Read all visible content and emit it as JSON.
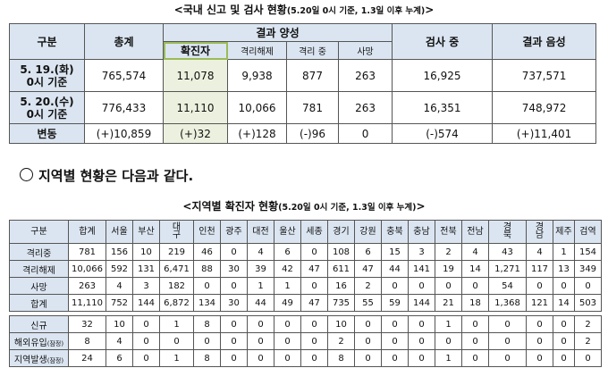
{
  "caption1": {
    "main": "<국내 신고 및 검사 현황",
    "sub": "(5.20일 0시 기준, 1.3일 이후 누계)",
    "end": ">"
  },
  "table1": {
    "h_gubun": "구분",
    "h_total": "총계",
    "h_pos": "결과 양성",
    "h_confirmed": "확진자",
    "h_released": "격리해제",
    "h_isolating": "격리 중",
    "h_death": "사망",
    "h_testing": "검사 중",
    "h_negative": "결과 음성",
    "rows": [
      {
        "label1": "5. 19.(화)",
        "label2": "0시 기준",
        "cells": [
          "765,574",
          "11,078",
          "9,938",
          "877",
          "263",
          "16,925",
          "737,571"
        ]
      },
      {
        "label1": "5. 20.(수)",
        "label2": "0시 기준",
        "cells": [
          "776,433",
          "11,110",
          "10,066",
          "781",
          "263",
          "16,351",
          "748,972"
        ]
      }
    ],
    "change": {
      "label": "변동",
      "cells": [
        "(+)10,859",
        "(+)32",
        "(+)128",
        "(-)96",
        "0",
        "(-)574",
        "(+)11,401"
      ]
    }
  },
  "heading": "지역별 현황은 다음과 같다.",
  "caption2": {
    "main": "<지역별 확진자 현황",
    "sub": "(5.20일 0시 기준, 1.3일 이후 누계)",
    "end": ">"
  },
  "table2": {
    "headers": [
      "구분",
      "합계",
      "서울",
      "부산",
      "대구",
      "인천",
      "광주",
      "대전",
      "울산",
      "세종",
      "경기",
      "강원",
      "충북",
      "충남",
      "전북",
      "전남",
      "경북",
      "경남",
      "제주",
      "검역"
    ],
    "rows": [
      {
        "label": "격리중",
        "note": "",
        "cells": [
          "781",
          "156",
          "10",
          "219",
          "46",
          "0",
          "4",
          "6",
          "0",
          "108",
          "6",
          "15",
          "3",
          "2",
          "4",
          "43",
          "4",
          "1",
          "154"
        ]
      },
      {
        "label": "격리해제",
        "note": "",
        "cells": [
          "10,066",
          "592",
          "131",
          "6,471",
          "88",
          "30",
          "39",
          "42",
          "47",
          "611",
          "47",
          "44",
          "141",
          "19",
          "14",
          "1,271",
          "117",
          "13",
          "349"
        ]
      },
      {
        "label": "사망",
        "note": "",
        "cells": [
          "263",
          "4",
          "3",
          "182",
          "0",
          "0",
          "1",
          "1",
          "0",
          "16",
          "2",
          "0",
          "0",
          "0",
          "0",
          "54",
          "0",
          "0",
          "0"
        ]
      },
      {
        "label": "합계",
        "note": "",
        "cells": [
          "11,110",
          "752",
          "144",
          "6,872",
          "134",
          "30",
          "44",
          "49",
          "47",
          "735",
          "55",
          "59",
          "144",
          "21",
          "18",
          "1,368",
          "121",
          "14",
          "503"
        ]
      }
    ],
    "rows2": [
      {
        "label": "신규",
        "note": "",
        "cells": [
          "32",
          "10",
          "0",
          "1",
          "8",
          "0",
          "0",
          "0",
          "0",
          "10",
          "0",
          "0",
          "0",
          "1",
          "0",
          "0",
          "0",
          "0",
          "2"
        ]
      },
      {
        "label": "해외유입",
        "note": "(잠정)",
        "cells": [
          "8",
          "4",
          "0",
          "0",
          "0",
          "0",
          "0",
          "0",
          "0",
          "2",
          "0",
          "0",
          "0",
          "0",
          "0",
          "0",
          "0",
          "0",
          "2"
        ]
      },
      {
        "label": "지역발생",
        "note": "(잠정)",
        "cells": [
          "24",
          "6",
          "0",
          "1",
          "8",
          "0",
          "0",
          "0",
          "0",
          "8",
          "0",
          "0",
          "0",
          "1",
          "0",
          "0",
          "0",
          "0",
          "0"
        ]
      }
    ]
  }
}
